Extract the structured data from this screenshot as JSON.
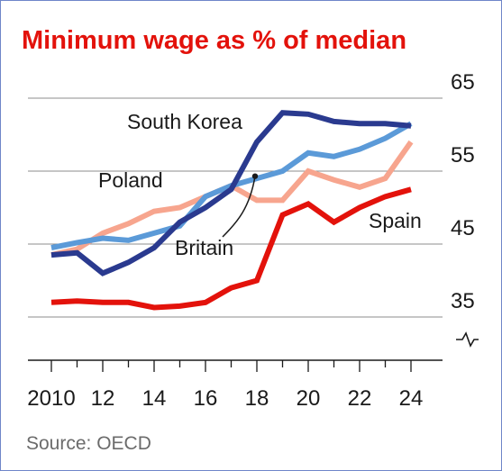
{
  "chart_data": {
    "type": "line",
    "title": "Minimum wage as % of median",
    "source": "Source: OECD",
    "x": [
      2010,
      2011,
      2012,
      2013,
      2014,
      2015,
      2016,
      2017,
      2018,
      2019,
      2020,
      2021,
      2022,
      2023,
      2024
    ],
    "x_tick_labels": [
      "2010",
      "12",
      "14",
      "16",
      "18",
      "20",
      "22",
      "24"
    ],
    "y_tick_labels": [
      "35",
      "45",
      "55",
      "65"
    ],
    "ylim": [
      35,
      65
    ],
    "y_axis_break": true,
    "grid": true,
    "series": [
      {
        "name": "South Korea",
        "color": "#2a3a8f",
        "values": [
          43.5,
          43.8,
          41.0,
          42.5,
          44.5,
          48.0,
          50.0,
          52.5,
          59.0,
          63.0,
          62.8,
          61.8,
          61.5,
          61.5,
          61.2
        ]
      },
      {
        "name": "Britain",
        "color": "#5b9ad8",
        "values": [
          44.5,
          45.2,
          45.8,
          45.5,
          46.5,
          47.5,
          51.5,
          53.0,
          54.0,
          55.0,
          57.5,
          57.0,
          58.0,
          59.5,
          61.5
        ]
      },
      {
        "name": "Poland",
        "color": "#f7a58e",
        "values": [
          43.5,
          44.3,
          46.5,
          47.8,
          49.5,
          50.0,
          51.5,
          53.0,
          51.0,
          51.0,
          55.0,
          53.8,
          52.8,
          54.0,
          59.0
        ]
      },
      {
        "name": "Spain",
        "color": "#e3120b",
        "values": [
          37.0,
          37.2,
          37.0,
          37.0,
          36.3,
          36.5,
          37.0,
          39.0,
          40.0,
          49.0,
          50.5,
          48.0,
          50.0,
          51.5,
          52.5
        ]
      }
    ]
  }
}
